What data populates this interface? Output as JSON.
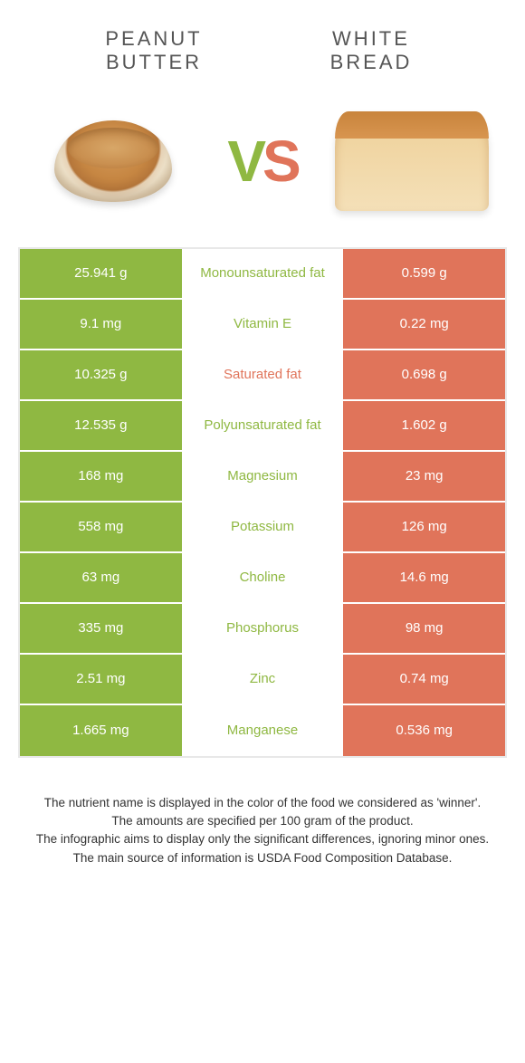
{
  "foods": {
    "left": {
      "name_line1": "Peanut",
      "name_line2": "butter"
    },
    "right": {
      "name_line1": "White",
      "name_line2": "bread"
    }
  },
  "vs": {
    "v": "V",
    "s": "S"
  },
  "colors": {
    "left": "#8fb842",
    "right": "#e0745a",
    "row_border": "#ffffff",
    "table_border": "#e8e8e8"
  },
  "rows": [
    {
      "left": "25.941 g",
      "label": "Monounsaturated fat",
      "right": "0.599 g",
      "winner": "left"
    },
    {
      "left": "9.1 mg",
      "label": "Vitamin E",
      "right": "0.22 mg",
      "winner": "left"
    },
    {
      "left": "10.325 g",
      "label": "Saturated fat",
      "right": "0.698 g",
      "winner": "right"
    },
    {
      "left": "12.535 g",
      "label": "Polyunsaturated fat",
      "right": "1.602 g",
      "winner": "left"
    },
    {
      "left": "168 mg",
      "label": "Magnesium",
      "right": "23 mg",
      "winner": "left"
    },
    {
      "left": "558 mg",
      "label": "Potassium",
      "right": "126 mg",
      "winner": "left"
    },
    {
      "left": "63 mg",
      "label": "Choline",
      "right": "14.6 mg",
      "winner": "left"
    },
    {
      "left": "335 mg",
      "label": "Phosphorus",
      "right": "98 mg",
      "winner": "left"
    },
    {
      "left": "2.51 mg",
      "label": "Zinc",
      "right": "0.74 mg",
      "winner": "left"
    },
    {
      "left": "1.665 mg",
      "label": "Manganese",
      "right": "0.536 mg",
      "winner": "left"
    }
  ],
  "footer": {
    "line1": "The nutrient name is displayed in the color of the food we considered as 'winner'.",
    "line2": "The amounts are specified per 100 gram of the product.",
    "line3": "The infographic aims to display only the significant differences, ignoring minor ones.",
    "line4": "The main source of information is USDA Food Composition Database."
  }
}
